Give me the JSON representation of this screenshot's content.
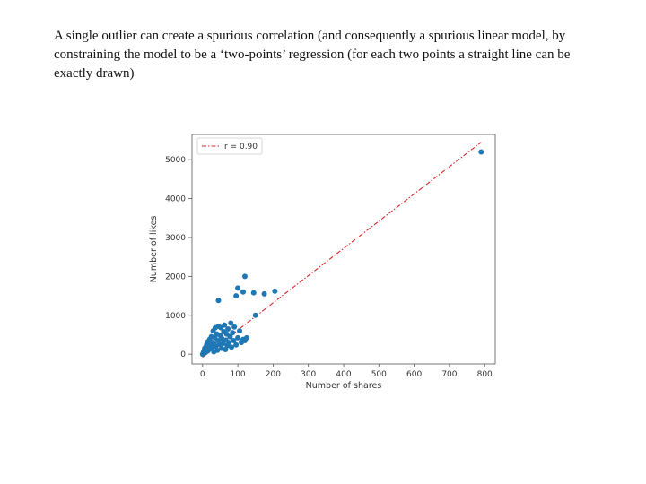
{
  "slide": {
    "caption": "A single outlier can create a spurious correlation (and consequently a spurious linear model, by constraining the model to be a ‘two-points’ regression (for each two points a straight line can be exactly drawn)"
  },
  "chart_data": {
    "type": "scatter",
    "xlabel": "Number of shares",
    "ylabel": "Number of likes",
    "xlim": [
      -30,
      830
    ],
    "ylim": [
      -250,
      5650
    ],
    "xticks": [
      0,
      100,
      200,
      300,
      400,
      500,
      600,
      700,
      800
    ],
    "yticks": [
      0,
      1000,
      2000,
      3000,
      4000,
      5000
    ],
    "legend": {
      "label": "r = 0.90",
      "placement": "top-left"
    },
    "grid": false,
    "colors": {
      "points": "#1f77b4",
      "fit_line": "#d62728"
    },
    "fit_line": {
      "style": "dash-dot",
      "x": [
        0,
        790
      ],
      "y": [
        -80,
        5450
      ]
    },
    "series": [
      {
        "points": [
          {
            "x": 0,
            "y": 0
          },
          {
            "x": 2,
            "y": 20
          },
          {
            "x": 3,
            "y": 60
          },
          {
            "x": 5,
            "y": 100
          },
          {
            "x": 6,
            "y": 150
          },
          {
            "x": 8,
            "y": 40
          },
          {
            "x": 10,
            "y": 200
          },
          {
            "x": 12,
            "y": 260
          },
          {
            "x": 14,
            "y": 80
          },
          {
            "x": 15,
            "y": 320
          },
          {
            "x": 18,
            "y": 120
          },
          {
            "x": 20,
            "y": 380
          },
          {
            "x": 22,
            "y": 210
          },
          {
            "x": 25,
            "y": 450
          },
          {
            "x": 26,
            "y": 150
          },
          {
            "x": 28,
            "y": 300
          },
          {
            "x": 30,
            "y": 600
          },
          {
            "x": 32,
            "y": 60
          },
          {
            "x": 33,
            "y": 260
          },
          {
            "x": 35,
            "y": 420
          },
          {
            "x": 36,
            "y": 680
          },
          {
            "x": 38,
            "y": 200
          },
          {
            "x": 40,
            "y": 520
          },
          {
            "x": 42,
            "y": 100
          },
          {
            "x": 44,
            "y": 350
          },
          {
            "x": 45,
            "y": 720
          },
          {
            "x": 48,
            "y": 250
          },
          {
            "x": 50,
            "y": 480
          },
          {
            "x": 52,
            "y": 680
          },
          {
            "x": 54,
            "y": 150
          },
          {
            "x": 55,
            "y": 400
          },
          {
            "x": 58,
            "y": 280
          },
          {
            "x": 60,
            "y": 580
          },
          {
            "x": 62,
            "y": 750
          },
          {
            "x": 65,
            "y": 120
          },
          {
            "x": 66,
            "y": 360
          },
          {
            "x": 68,
            "y": 520
          },
          {
            "x": 70,
            "y": 220
          },
          {
            "x": 72,
            "y": 650
          },
          {
            "x": 75,
            "y": 300
          },
          {
            "x": 78,
            "y": 450
          },
          {
            "x": 80,
            "y": 800
          },
          {
            "x": 82,
            "y": 180
          },
          {
            "x": 85,
            "y": 550
          },
          {
            "x": 88,
            "y": 350
          },
          {
            "x": 90,
            "y": 700
          },
          {
            "x": 95,
            "y": 240
          },
          {
            "x": 100,
            "y": 420
          },
          {
            "x": 105,
            "y": 600
          },
          {
            "x": 110,
            "y": 300
          },
          {
            "x": 115,
            "y": 380
          },
          {
            "x": 120,
            "y": 350
          },
          {
            "x": 125,
            "y": 420
          },
          {
            "x": 45,
            "y": 1380
          },
          {
            "x": 95,
            "y": 1500
          },
          {
            "x": 100,
            "y": 1700
          },
          {
            "x": 115,
            "y": 1600
          },
          {
            "x": 120,
            "y": 2000
          },
          {
            "x": 145,
            "y": 1580
          },
          {
            "x": 150,
            "y": 1000
          },
          {
            "x": 175,
            "y": 1550
          },
          {
            "x": 205,
            "y": 1620
          },
          {
            "x": 790,
            "y": 5200
          }
        ]
      }
    ]
  }
}
